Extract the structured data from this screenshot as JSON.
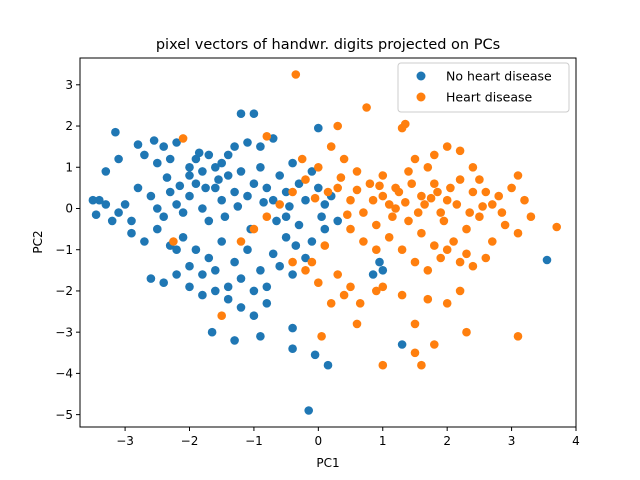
{
  "chart_data": {
    "type": "scatter",
    "title": "pixel vectors of handwr. digits projected on PCs",
    "xlabel": "PC1",
    "ylabel": "PC2",
    "xlim": [
      -3.7,
      4.0
    ],
    "ylim": [
      -5.3,
      3.65
    ],
    "xticks": [
      -3,
      -2,
      -1,
      0,
      1,
      2,
      3,
      4
    ],
    "yticks": [
      -5,
      -4,
      -3,
      -2,
      -1,
      0,
      1,
      2,
      3
    ],
    "grid": false,
    "legend_position": "top-right",
    "series": [
      {
        "name": "No heart disease",
        "color": "#1f77b4",
        "points": [
          [
            -3.4,
            0.2
          ],
          [
            -3.5,
            0.2
          ],
          [
            -3.45,
            -0.15
          ],
          [
            -3.3,
            0.1
          ],
          [
            -3.2,
            -0.3
          ],
          [
            -3.1,
            -0.1
          ],
          [
            -3.0,
            0.1
          ],
          [
            -2.9,
            -0.3
          ],
          [
            -3.15,
            1.85
          ],
          [
            -3.3,
            0.9
          ],
          [
            -3.1,
            1.2
          ],
          [
            -2.8,
            1.55
          ],
          [
            -2.7,
            1.3
          ],
          [
            -2.55,
            1.65
          ],
          [
            -2.5,
            1.1
          ],
          [
            -2.4,
            1.5
          ],
          [
            -2.3,
            1.2
          ],
          [
            -2.2,
            1.6
          ],
          [
            -2.0,
            1.0
          ],
          [
            -1.9,
            1.2
          ],
          [
            -1.8,
            0.9
          ],
          [
            -1.7,
            1.3
          ],
          [
            -1.5,
            1.1
          ],
          [
            -1.3,
            1.5
          ],
          [
            -1.2,
            2.3
          ],
          [
            -1.0,
            2.3
          ],
          [
            -0.9,
            1.5
          ],
          [
            -0.7,
            1.7
          ],
          [
            -1.1,
            1.6
          ],
          [
            -1.4,
            1.3
          ],
          [
            -2.8,
            0.5
          ],
          [
            -2.6,
            0.3
          ],
          [
            -2.5,
            0.0
          ],
          [
            -2.4,
            -0.2
          ],
          [
            -2.3,
            0.4
          ],
          [
            -2.2,
            0.1
          ],
          [
            -2.1,
            -0.1
          ],
          [
            -2.0,
            0.3
          ],
          [
            -1.9,
            0.6
          ],
          [
            -1.8,
            0.0
          ],
          [
            -1.7,
            -0.3
          ],
          [
            -1.6,
            0.5
          ],
          [
            -1.5,
            0.2
          ],
          [
            -1.4,
            0.8
          ],
          [
            -1.3,
            0.4
          ],
          [
            -1.2,
            0.9
          ],
          [
            -1.1,
            0.3
          ],
          [
            -1.0,
            0.6
          ],
          [
            -0.9,
            1.0
          ],
          [
            -0.8,
            0.5
          ],
          [
            -0.7,
            0.2
          ],
          [
            -0.6,
            0.8
          ],
          [
            -0.5,
            0.4
          ],
          [
            -0.4,
            1.1
          ],
          [
            -0.3,
            0.6
          ],
          [
            -0.2,
            0.2
          ],
          [
            -0.1,
            0.9
          ],
          [
            0.0,
            0.5
          ],
          [
            0.1,
            0.1
          ],
          [
            -2.9,
            -0.6
          ],
          [
            -2.7,
            -0.8
          ],
          [
            -2.5,
            -0.5
          ],
          [
            -2.3,
            -0.9
          ],
          [
            -2.1,
            -0.7
          ],
          [
            -1.9,
            -1.0
          ],
          [
            -1.7,
            -1.2
          ],
          [
            -1.5,
            -0.8
          ],
          [
            -1.3,
            -1.3
          ],
          [
            -1.1,
            -1.0
          ],
          [
            -0.9,
            -1.5
          ],
          [
            -0.7,
            -1.1
          ],
          [
            -0.5,
            -0.7
          ],
          [
            -0.3,
            -0.4
          ],
          [
            -0.1,
            -0.8
          ],
          [
            0.1,
            -0.5
          ],
          [
            -2.2,
            -1.0
          ],
          [
            -2.0,
            -1.4
          ],
          [
            -1.8,
            -1.6
          ],
          [
            -1.6,
            -1.5
          ],
          [
            -1.4,
            -1.9
          ],
          [
            -1.2,
            -1.7
          ],
          [
            -1.0,
            -2.0
          ],
          [
            -0.8,
            -1.9
          ],
          [
            -0.6,
            -1.4
          ],
          [
            -0.4,
            -1.6
          ],
          [
            -0.2,
            -1.2
          ],
          [
            -2.6,
            -1.7
          ],
          [
            -2.4,
            -1.8
          ],
          [
            -2.2,
            -1.6
          ],
          [
            -2.0,
            -1.9
          ],
          [
            -1.8,
            -2.1
          ],
          [
            -1.6,
            -2.0
          ],
          [
            -1.4,
            -2.2
          ],
          [
            -1.2,
            -2.4
          ],
          [
            -1.0,
            -2.6
          ],
          [
            -0.8,
            -2.3
          ],
          [
            -1.65,
            -3.0
          ],
          [
            -1.3,
            -3.2
          ],
          [
            -0.9,
            -3.1
          ],
          [
            -0.4,
            -2.9
          ],
          [
            -0.4,
            -3.4
          ],
          [
            -0.05,
            -3.55
          ],
          [
            0.15,
            -3.8
          ],
          [
            -0.15,
            -4.9
          ],
          [
            1.3,
            -3.3
          ],
          [
            0.95,
            -1.3
          ],
          [
            0.85,
            -1.6
          ],
          [
            1.0,
            -1.5
          ],
          [
            3.55,
            -1.25
          ],
          [
            0.0,
            1.95
          ],
          [
            -0.5,
            -0.2
          ],
          [
            -1.6,
            1.0
          ],
          [
            -2.0,
            0.8
          ],
          [
            -1.75,
            0.5
          ],
          [
            -1.45,
            -0.2
          ],
          [
            -1.05,
            -0.5
          ],
          [
            -0.65,
            -0.3
          ],
          [
            -0.35,
            -0.9
          ],
          [
            -2.35,
            0.75
          ],
          [
            -1.85,
            1.35
          ],
          [
            -1.55,
            0.7
          ],
          [
            -0.85,
            0.15
          ],
          [
            -0.45,
            0.05
          ],
          [
            0.05,
            -0.2
          ],
          [
            0.2,
            0.3
          ],
          [
            0.3,
            -0.3
          ],
          [
            -2.15,
            0.55
          ],
          [
            -1.25,
            0.05
          ]
        ]
      },
      {
        "name": "Heart disease",
        "color": "#ff7f0e",
        "points": [
          [
            -0.35,
            3.25
          ],
          [
            0.75,
            2.45
          ],
          [
            0.3,
            2.0
          ],
          [
            -0.8,
            1.75
          ],
          [
            -2.1,
            1.7
          ],
          [
            1.3,
            1.95
          ],
          [
            1.35,
            2.05
          ],
          [
            1.5,
            1.2
          ],
          [
            1.7,
            1.0
          ],
          [
            1.8,
            1.3
          ],
          [
            2.0,
            1.5
          ],
          [
            2.2,
            1.4
          ],
          [
            2.4,
            1.0
          ],
          [
            2.5,
            0.7
          ],
          [
            2.8,
            0.3
          ],
          [
            3.0,
            0.5
          ],
          [
            3.1,
            0.8
          ],
          [
            3.2,
            0.2
          ],
          [
            3.3,
            -0.2
          ],
          [
            3.1,
            -0.6
          ],
          [
            2.9,
            -0.4
          ],
          [
            2.7,
            -0.8
          ],
          [
            2.6,
            -1.2
          ],
          [
            2.4,
            -1.4
          ],
          [
            2.2,
            -1.3
          ],
          [
            2.0,
            -1.0
          ],
          [
            1.8,
            -0.9
          ],
          [
            1.6,
            -0.6
          ],
          [
            1.4,
            -0.3
          ],
          [
            1.2,
            0.0
          ],
          [
            1.0,
            0.3
          ],
          [
            0.8,
            0.6
          ],
          [
            0.6,
            0.9
          ],
          [
            0.4,
            1.2
          ],
          [
            0.2,
            1.5
          ],
          [
            0.0,
            1.0
          ],
          [
            -0.2,
            0.7
          ],
          [
            -0.4,
            0.4
          ],
          [
            -0.6,
            0.1
          ],
          [
            -0.8,
            -0.2
          ],
          [
            -1.0,
            -0.5
          ],
          [
            -1.2,
            -0.8
          ],
          [
            0.5,
            0.2
          ],
          [
            0.7,
            -0.1
          ],
          [
            0.9,
            -0.4
          ],
          [
            1.1,
            -0.7
          ],
          [
            1.3,
            -1.0
          ],
          [
            1.5,
            -1.3
          ],
          [
            1.7,
            -1.5
          ],
          [
            1.9,
            -1.2
          ],
          [
            2.1,
            -0.8
          ],
          [
            2.3,
            -0.5
          ],
          [
            2.5,
            -0.2
          ],
          [
            2.7,
            0.1
          ],
          [
            1.0,
            0.8
          ],
          [
            1.2,
            0.5
          ],
          [
            1.4,
            0.9
          ],
          [
            1.6,
            0.3
          ],
          [
            1.8,
            0.6
          ],
          [
            2.0,
            0.2
          ],
          [
            2.2,
            0.7
          ],
          [
            2.4,
            0.4
          ],
          [
            0.3,
            0.5
          ],
          [
            0.5,
            -0.5
          ],
          [
            0.7,
            -0.8
          ],
          [
            0.9,
            -1.0
          ],
          [
            0.1,
            -0.9
          ],
          [
            -0.1,
            -1.3
          ],
          [
            0.3,
            -1.6
          ],
          [
            0.5,
            -1.9
          ],
          [
            0.4,
            -2.1
          ],
          [
            0.2,
            -2.3
          ],
          [
            0.0,
            -1.8
          ],
          [
            -0.2,
            -1.5
          ],
          [
            -0.4,
            -1.3
          ],
          [
            1.0,
            -1.9
          ],
          [
            1.3,
            -2.1
          ],
          [
            1.7,
            -2.2
          ],
          [
            2.0,
            -2.3
          ],
          [
            2.2,
            -2.0
          ],
          [
            0.6,
            -2.8
          ],
          [
            1.5,
            -2.8
          ],
          [
            1.5,
            -3.5
          ],
          [
            1.8,
            -3.3
          ],
          [
            1.6,
            -3.8
          ],
          [
            1.0,
            -3.8
          ],
          [
            2.3,
            -3.0
          ],
          [
            3.1,
            -3.1
          ],
          [
            0.05,
            -3.1
          ],
          [
            0.9,
            -2.0
          ],
          [
            0.65,
            -2.3
          ],
          [
            -1.5,
            -2.6
          ],
          [
            -2.25,
            -0.8
          ],
          [
            3.7,
            -0.45
          ],
          [
            2.3,
            -1.1
          ],
          [
            1.9,
            -0.1
          ],
          [
            1.1,
            0.1
          ],
          [
            1.25,
            0.4
          ],
          [
            1.45,
            0.6
          ],
          [
            1.65,
            0.1
          ],
          [
            1.85,
            0.4
          ],
          [
            2.05,
            0.5
          ],
          [
            0.85,
            0.2
          ],
          [
            0.95,
            0.55
          ],
          [
            1.15,
            -0.2
          ],
          [
            1.35,
            0.15
          ],
          [
            1.55,
            -0.1
          ],
          [
            1.75,
            0.25
          ],
          [
            1.95,
            -0.3
          ],
          [
            2.15,
            0.1
          ],
          [
            2.35,
            -0.1
          ],
          [
            2.55,
            0.05
          ],
          [
            0.15,
            0.4
          ],
          [
            0.35,
            0.75
          ],
          [
            -0.05,
            0.25
          ],
          [
            -0.25,
            1.2
          ],
          [
            0.6,
            0.45
          ],
          [
            0.45,
            -0.15
          ],
          [
            2.85,
            -0.1
          ],
          [
            2.6,
            0.4
          ]
        ]
      }
    ]
  }
}
